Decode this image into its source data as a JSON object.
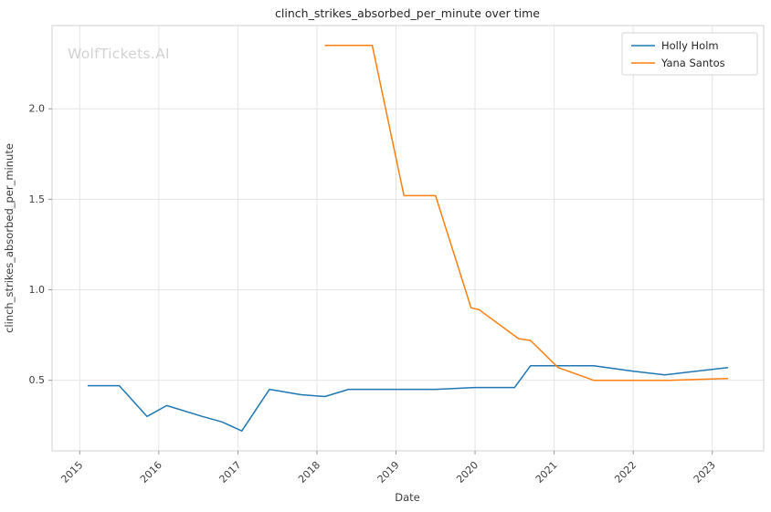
{
  "watermark": "WolfTickets.AI",
  "chart_data": {
    "type": "line",
    "title": "clinch_strikes_absorbed_per_minute over time",
    "xlabel": "Date",
    "ylabel": "clinch_strikes_absorbed_per_minute",
    "legend_position": "upper right",
    "grid": true,
    "xlim": [
      2014.65,
      2023.65
    ],
    "ylim": [
      0.11,
      2.46
    ],
    "x_ticks": [
      2015,
      2016,
      2017,
      2018,
      2019,
      2020,
      2021,
      2022,
      2023
    ],
    "y_ticks": [
      0.5,
      1.0,
      1.5,
      2.0
    ],
    "series": [
      {
        "name": "Holly Holm",
        "color": "#1f77b4",
        "x": [
          2015.1,
          2015.5,
          2015.85,
          2016.1,
          2016.55,
          2016.8,
          2017.05,
          2017.4,
          2017.8,
          2018.1,
          2018.4,
          2019.0,
          2019.5,
          2020.0,
          2020.5,
          2020.7,
          2021.0,
          2021.5,
          2022.0,
          2022.4,
          2023.2
        ],
        "y": [
          0.47,
          0.47,
          0.3,
          0.36,
          0.3,
          0.27,
          0.22,
          0.45,
          0.42,
          0.41,
          0.45,
          0.45,
          0.45,
          0.46,
          0.46,
          0.58,
          0.58,
          0.58,
          0.55,
          0.53,
          0.57
        ]
      },
      {
        "name": "Yana Santos",
        "color": "#ff7f0e",
        "x": [
          2018.1,
          2018.7,
          2019.1,
          2019.5,
          2019.95,
          2020.05,
          2020.55,
          2020.7,
          2021.05,
          2021.5,
          2022.05,
          2022.45,
          2023.2
        ],
        "y": [
          2.35,
          2.35,
          1.52,
          1.52,
          0.9,
          0.89,
          0.73,
          0.72,
          0.57,
          0.5,
          0.5,
          0.5,
          0.51
        ]
      }
    ]
  }
}
